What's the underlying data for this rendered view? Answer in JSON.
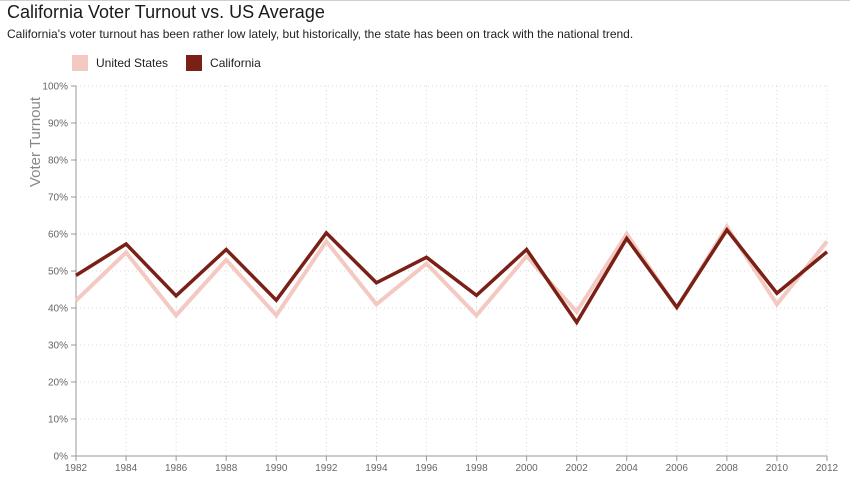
{
  "title": "California Voter Turnout vs. US Average",
  "subtitle": "California's voter turnout has been rather low lately, but historically, the state has been on track with the national trend.",
  "chart_data": {
    "type": "line",
    "title": "California Voter Turnout vs. US Average",
    "subtitle": "California's voter turnout has been rather low lately, but historically, the state has been on track with the national trend.",
    "xlabel": "",
    "ylabel": "Voter Turnout",
    "x": [
      1982,
      1984,
      1986,
      1988,
      1990,
      1992,
      1994,
      1996,
      1998,
      2000,
      2002,
      2004,
      2006,
      2008,
      2010,
      2012
    ],
    "x_tick_labels": [
      "1982",
      "1984",
      "1986",
      "1988",
      "1990",
      "1992",
      "1994",
      "1996",
      "1998",
      "2000",
      "2002",
      "2004",
      "2006",
      "2008",
      "2010",
      "2012"
    ],
    "y_ticks": [
      0,
      10,
      20,
      30,
      40,
      50,
      60,
      70,
      80,
      90,
      100
    ],
    "y_tick_labels": [
      "0%",
      "10%",
      "20%",
      "30%",
      "40%",
      "50%",
      "60%",
      "70%",
      "80%",
      "90%",
      "100%"
    ],
    "ylim": [
      0,
      100
    ],
    "xlim": [
      1982,
      2012
    ],
    "grid": true,
    "legend_position": "top-left",
    "series": [
      {
        "name": "United States",
        "color": "#f4c9c1",
        "values": [
          42,
          55,
          38,
          53,
          38,
          58,
          41,
          52,
          38,
          54,
          39,
          60,
          40,
          62,
          41,
          58
        ]
      },
      {
        "name": "California",
        "color": "#7a2016",
        "values": [
          48.8,
          57.3,
          43.3,
          55.8,
          42.1,
          60.3,
          46.8,
          53.7,
          43.4,
          55.8,
          36.1,
          58.8,
          40.2,
          61.1,
          44.0,
          55.2
        ]
      }
    ]
  }
}
